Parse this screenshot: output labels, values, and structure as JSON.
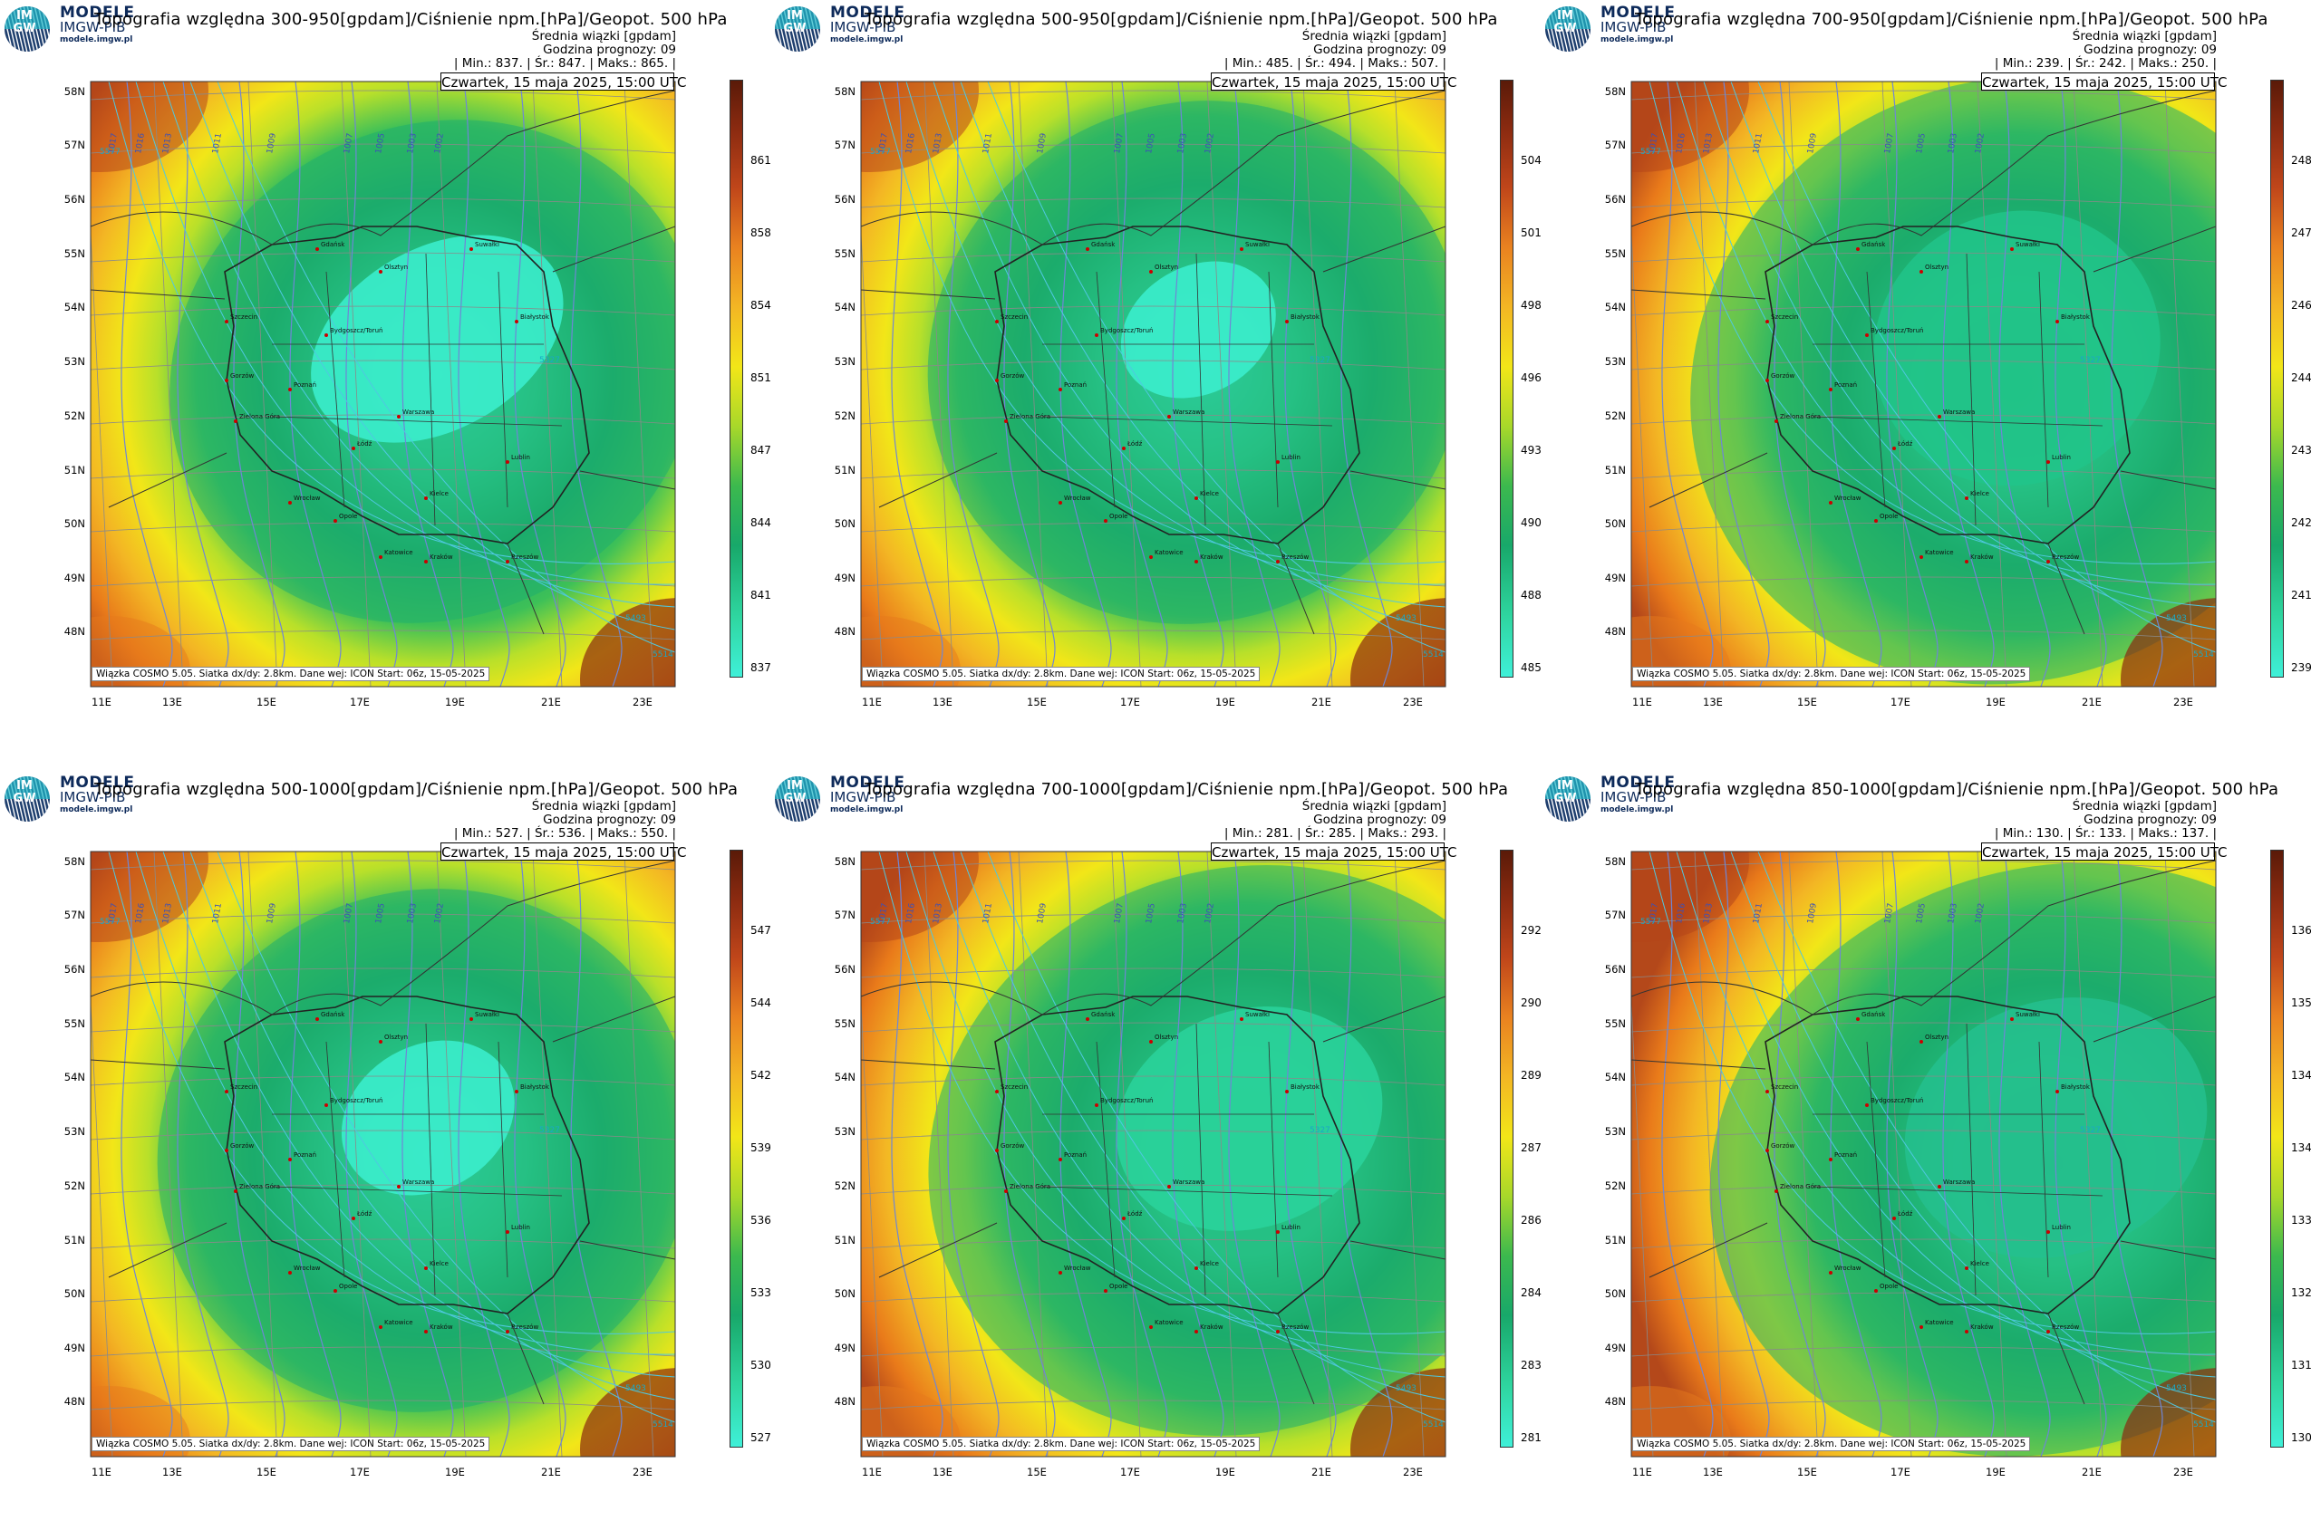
{
  "brand": {
    "name": "MODELE",
    "org": "IMGW-PIB",
    "url": "modele.imgw.pl",
    "logo_letters": "IM GW"
  },
  "common": {
    "subtitle": "Średnia wiązki [gpdam]",
    "forecast_hour": "Godzina prognozy: 09",
    "date": "Czwartek, 15 maja 2025, 15:00 UTC",
    "footer": "Wiązka COSMO 5.05. Siatka dx/dy: 2.8km. Dane wej: ICON Start: 06z, 15-05-2025",
    "lat_labels": [
      "58N",
      "57N",
      "56N",
      "55N",
      "54N",
      "53N",
      "52N",
      "51N",
      "50N",
      "49N",
      "48N"
    ],
    "lon_labels": [
      "11E",
      "13E",
      "15E",
      "17E",
      "19E",
      "21E",
      "23E"
    ]
  },
  "panels": [
    {
      "title": "Topografia względna 300-950[gpdam]/Ciśnienie npm.[hPa]/Geopot. 500 hPa",
      "stats": "| Min.: 837. | Śr.: 847. | Maks.: 865. |",
      "colorbar": [
        "861",
        "858",
        "854",
        "851",
        "847",
        "844",
        "841",
        "837"
      ]
    },
    {
      "title": "Topografia względna 500-950[gpdam]/Ciśnienie npm.[hPa]/Geopot. 500 hPa",
      "stats": "| Min.: 485. | Śr.: 494. | Maks.: 507. |",
      "colorbar": [
        "504",
        "501",
        "498",
        "496",
        "493",
        "490",
        "488",
        "485"
      ]
    },
    {
      "title": "Topografia względna 700-950[gpdam]/Ciśnienie npm.[hPa]/Geopot. 500 hPa",
      "stats": "| Min.: 239. | Śr.: 242. | Maks.: 250. |",
      "colorbar": [
        "248",
        "247",
        "246",
        "244",
        "243",
        "242",
        "241",
        "239"
      ]
    },
    {
      "title": "Topografia względna 500-1000[gpdam]/Ciśnienie npm.[hPa]/Geopot. 500 hPa",
      "stats": "| Min.: 527. | Śr.: 536. | Maks.: 550. |",
      "colorbar": [
        "547",
        "544",
        "542",
        "539",
        "536",
        "533",
        "530",
        "527"
      ]
    },
    {
      "title": "Topografia względna 700-1000[gpdam]/Ciśnienie npm.[hPa]/Geopot. 500 hPa",
      "stats": "| Min.: 281. | Śr.: 285. | Maks.: 293. |",
      "colorbar": [
        "292",
        "290",
        "289",
        "287",
        "286",
        "284",
        "283",
        "281"
      ]
    },
    {
      "title": "Topografia względna 850-1000[gpdam]/Ciśnienie npm.[hPa]/Geopot. 500 hPa",
      "stats": "| Min.: 130. | Śr.: 133. | Maks.: 137. |",
      "colorbar": [
        "136",
        "135",
        "134",
        "134",
        "133",
        "132",
        "131",
        "130"
      ]
    }
  ],
  "cities": [
    "Gdańsk",
    "Olsztyn",
    "Suwałki",
    "Szczecin",
    "Bydgoszcz/Toruń",
    "Białystok",
    "Gorzów",
    "Poznań",
    "Warszawa",
    "Zielona Góra",
    "Łódź",
    "Lublin",
    "Wrocław",
    "Kielce",
    "Opole",
    "Katowice",
    "Kraków",
    "Rzeszów"
  ],
  "isobar_labels": [
    "1017",
    "1016",
    "1013",
    "1011",
    "1009",
    "1007",
    "1005",
    "1003",
    "1002"
  ],
  "geopot_labels": [
    "5327",
    "5493",
    "5514",
    "5577"
  ],
  "colors": {
    "low": "#3ff0d8",
    "mid_green": "#1fae6e",
    "yellow": "#f1e614",
    "orange": "#f0a020",
    "red_brown": "#8a2a10"
  }
}
